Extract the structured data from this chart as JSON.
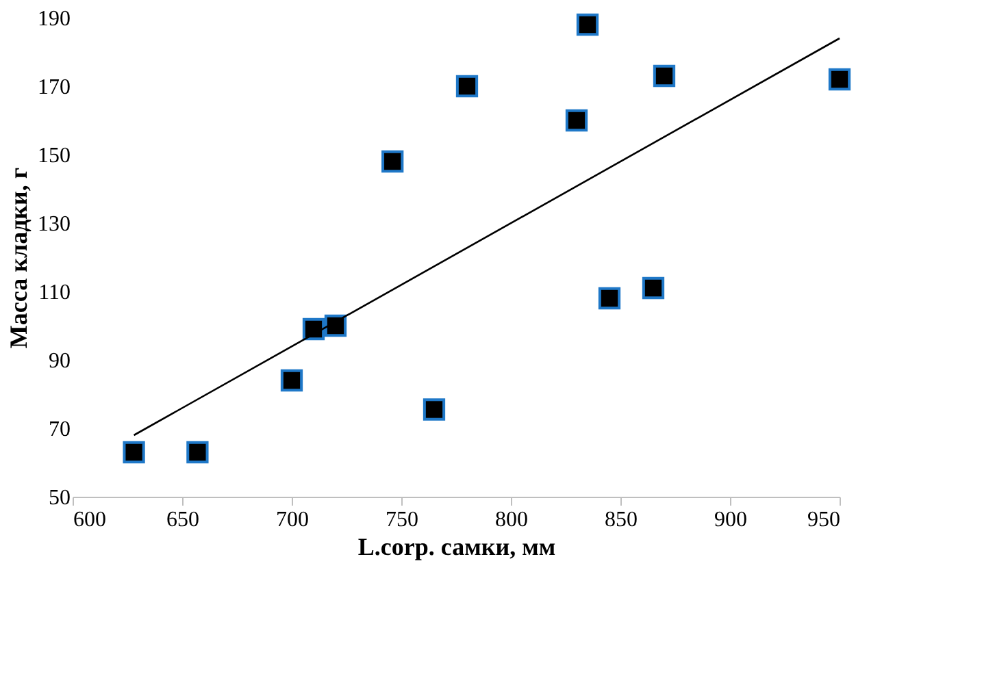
{
  "chart_data": {
    "type": "scatter",
    "xlabel": "L.corp. самки, мм",
    "ylabel": "Масса кладки, г",
    "xlim": [
      600,
      950
    ],
    "xticks": [
      600,
      650,
      700,
      750,
      800,
      850,
      900,
      950
    ],
    "ylim": [
      50,
      190
    ],
    "yticks": [
      50,
      70,
      90,
      110,
      130,
      150,
      170,
      190
    ],
    "grid": false,
    "marker": "square",
    "series": [
      {
        "color": "#000000",
        "x": [
          628,
          657,
          700,
          710,
          720,
          746,
          765,
          780,
          830,
          835,
          845,
          865,
          870,
          950
        ],
        "values": [
          63,
          63,
          84,
          99,
          100,
          148,
          75.5,
          170,
          160,
          188,
          108,
          111,
          173,
          172
        ]
      },
      {
        "type": "line",
        "color": "#000000",
        "line_style": "solid",
        "marker": "none",
        "x": [
          628,
          950
        ],
        "values": [
          68,
          184
        ]
      }
    ]
  }
}
